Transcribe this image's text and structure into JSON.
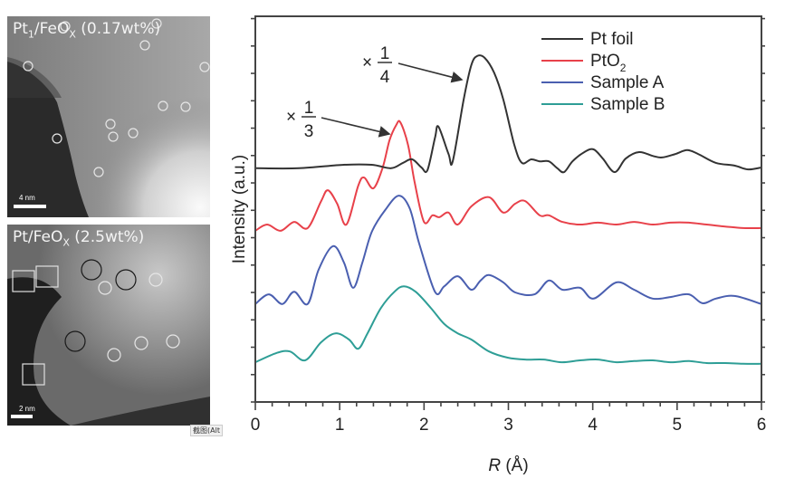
{
  "micrographs": [
    {
      "label_main": "Pt",
      "label_sub": "1",
      "label_rest": "/FeO",
      "label_sub2": "X",
      "label_tail": " (0.17wt%)",
      "scale_bar": "4 nm",
      "markers": {
        "white_circles": 13
      }
    },
    {
      "label_main": "Pt/FeO",
      "label_sub": "X",
      "label_tail": " (2.5wt%)",
      "scale_bar": "2 nm",
      "markers": {
        "white_circles": 5,
        "dark_circles": 3,
        "squares": 3
      }
    }
  ],
  "tooltip": "截图(Alt",
  "chart_data": {
    "type": "line",
    "title": "",
    "xlabel_italic": "R",
    "xlabel_rest": " (Å)",
    "ylabel": "Intensity (a.u.)",
    "xlim": [
      0,
      6
    ],
    "ylim": [
      0,
      100
    ],
    "xticks": [
      "0",
      "1",
      "2",
      "3",
      "4",
      "5",
      "6"
    ],
    "yticks_labeled": false,
    "grid": false,
    "legend_position": "top-right",
    "annotations": [
      {
        "prefix": "×",
        "numerator": "1",
        "denominator": "4",
        "target_series": "Pt foil"
      },
      {
        "prefix": "×",
        "numerator": "1",
        "denominator": "3",
        "target_series": "PtO2"
      }
    ],
    "series": [
      {
        "name": "Pt foil",
        "legend_label": "Pt foil",
        "color": "#333333",
        "points": [
          [
            0,
            60.6
          ],
          [
            0.52,
            60.6
          ],
          [
            1.05,
            61.5
          ],
          [
            1.38,
            61.5
          ],
          [
            1.61,
            60.6
          ],
          [
            1.75,
            62.0
          ],
          [
            1.86,
            62.9
          ],
          [
            1.97,
            60.8
          ],
          [
            2.04,
            60.1
          ],
          [
            2.13,
            68.5
          ],
          [
            2.17,
            71.4
          ],
          [
            2.29,
            64.3
          ],
          [
            2.34,
            62.4
          ],
          [
            2.47,
            78.4
          ],
          [
            2.56,
            87.3
          ],
          [
            2.63,
            89.7
          ],
          [
            2.72,
            89.2
          ],
          [
            2.83,
            85.4
          ],
          [
            2.94,
            78.4
          ],
          [
            3.07,
            66.7
          ],
          [
            3.16,
            62.0
          ],
          [
            3.27,
            62.9
          ],
          [
            3.37,
            62.4
          ],
          [
            3.48,
            62.4
          ],
          [
            3.58,
            60.6
          ],
          [
            3.66,
            59.6
          ],
          [
            3.76,
            62.4
          ],
          [
            3.9,
            64.8
          ],
          [
            4.01,
            65.5
          ],
          [
            4.12,
            63.1
          ],
          [
            4.26,
            59.6
          ],
          [
            4.39,
            63.1
          ],
          [
            4.55,
            64.8
          ],
          [
            4.71,
            63.8
          ],
          [
            4.82,
            63.4
          ],
          [
            4.98,
            64.3
          ],
          [
            5.12,
            65.3
          ],
          [
            5.25,
            64.3
          ],
          [
            5.46,
            62.0
          ],
          [
            5.68,
            61.3
          ],
          [
            5.84,
            60.3
          ],
          [
            6.0,
            60.8
          ]
        ]
      },
      {
        "name": "PtO2",
        "legend_label": "PtO",
        "legend_sub": "2",
        "color": "#e8414a",
        "points": [
          [
            0,
            44.4
          ],
          [
            0.14,
            46.0
          ],
          [
            0.3,
            44.4
          ],
          [
            0.46,
            46.7
          ],
          [
            0.62,
            45.1
          ],
          [
            0.78,
            52.1
          ],
          [
            0.86,
            54.9
          ],
          [
            0.97,
            51.4
          ],
          [
            1.08,
            46.0
          ],
          [
            1.22,
            56.1
          ],
          [
            1.29,
            58.2
          ],
          [
            1.4,
            55.4
          ],
          [
            1.51,
            60.8
          ],
          [
            1.59,
            67.8
          ],
          [
            1.67,
            71.8
          ],
          [
            1.72,
            72.5
          ],
          [
            1.81,
            66.7
          ],
          [
            1.89,
            56.8
          ],
          [
            2.0,
            46.7
          ],
          [
            2.1,
            48.4
          ],
          [
            2.18,
            47.9
          ],
          [
            2.29,
            49.1
          ],
          [
            2.4,
            46.0
          ],
          [
            2.56,
            50.7
          ],
          [
            2.77,
            53.1
          ],
          [
            2.94,
            49.1
          ],
          [
            3.08,
            51.4
          ],
          [
            3.2,
            52.1
          ],
          [
            3.37,
            48.4
          ],
          [
            3.48,
            48.4
          ],
          [
            3.64,
            46.7
          ],
          [
            3.85,
            46.0
          ],
          [
            4.06,
            46.5
          ],
          [
            4.28,
            46.0
          ],
          [
            4.49,
            46.7
          ],
          [
            4.71,
            46.0
          ],
          [
            4.92,
            46.5
          ],
          [
            5.14,
            46.5
          ],
          [
            5.35,
            46.0
          ],
          [
            5.57,
            45.5
          ],
          [
            5.78,
            45.1
          ],
          [
            6.0,
            45.1
          ]
        ]
      },
      {
        "name": "Sample A",
        "legend_label": "Sample A",
        "color": "#4a5fb0",
        "points": [
          [
            0,
            25.4
          ],
          [
            0.16,
            27.9
          ],
          [
            0.32,
            25.4
          ],
          [
            0.46,
            28.6
          ],
          [
            0.62,
            25.4
          ],
          [
            0.75,
            34.3
          ],
          [
            0.92,
            40.4
          ],
          [
            1.05,
            36.2
          ],
          [
            1.16,
            29.6
          ],
          [
            1.27,
            36.2
          ],
          [
            1.38,
            44.1
          ],
          [
            1.54,
            49.8
          ],
          [
            1.7,
            53.5
          ],
          [
            1.83,
            50.2
          ],
          [
            1.94,
            41.3
          ],
          [
            2.13,
            28.6
          ],
          [
            2.24,
            30.0
          ],
          [
            2.4,
            32.6
          ],
          [
            2.56,
            29.1
          ],
          [
            2.67,
            31.5
          ],
          [
            2.77,
            32.9
          ],
          [
            2.94,
            31.0
          ],
          [
            3.08,
            28.4
          ],
          [
            3.31,
            27.9
          ],
          [
            3.48,
            31.5
          ],
          [
            3.64,
            29.1
          ],
          [
            3.85,
            29.6
          ],
          [
            4.01,
            26.8
          ],
          [
            4.28,
            31.0
          ],
          [
            4.49,
            29.1
          ],
          [
            4.71,
            26.8
          ],
          [
            4.92,
            27.2
          ],
          [
            5.14,
            27.9
          ],
          [
            5.3,
            25.6
          ],
          [
            5.46,
            26.8
          ],
          [
            5.68,
            27.5
          ],
          [
            6.0,
            25.4
          ]
        ]
      },
      {
        "name": "Sample B",
        "legend_label": "Sample B",
        "color": "#2e9e96",
        "points": [
          [
            0,
            10.3
          ],
          [
            0.25,
            12.7
          ],
          [
            0.41,
            13.1
          ],
          [
            0.59,
            10.8
          ],
          [
            0.78,
            15.5
          ],
          [
            0.95,
            17.8
          ],
          [
            1.11,
            16.2
          ],
          [
            1.22,
            13.8
          ],
          [
            1.33,
            17.8
          ],
          [
            1.49,
            24.4
          ],
          [
            1.65,
            28.6
          ],
          [
            1.76,
            30.0
          ],
          [
            1.9,
            28.6
          ],
          [
            2.08,
            24.4
          ],
          [
            2.24,
            20.2
          ],
          [
            2.4,
            17.8
          ],
          [
            2.56,
            16.2
          ],
          [
            2.77,
            13.1
          ],
          [
            2.99,
            11.5
          ],
          [
            3.2,
            11.0
          ],
          [
            3.42,
            11.0
          ],
          [
            3.63,
            10.3
          ],
          [
            3.85,
            10.8
          ],
          [
            4.06,
            11.0
          ],
          [
            4.28,
            10.3
          ],
          [
            4.49,
            10.6
          ],
          [
            4.71,
            10.8
          ],
          [
            4.92,
            10.3
          ],
          [
            5.14,
            10.6
          ],
          [
            5.35,
            10.1
          ],
          [
            5.57,
            10.1
          ],
          [
            5.78,
            9.9
          ],
          [
            6.0,
            9.9
          ]
        ]
      }
    ]
  }
}
